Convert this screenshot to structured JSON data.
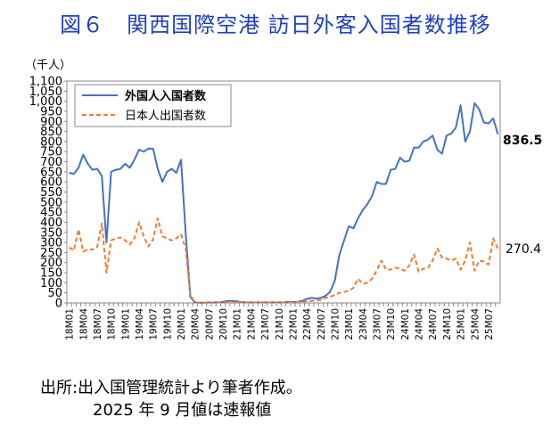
{
  "title": "図６　関西国際空港  訪日外客入国者数推移",
  "y_unit": "（千人）",
  "source_line1": "出所:出入国管理統計より筆者作成。",
  "source_line2": "2025 年 9 月値は速報値",
  "colors": {
    "foreign": "#4472c4",
    "japanese": "#ed7d31",
    "title": "#1f3fbf"
  },
  "chart_data": {
    "type": "line",
    "title": "図６　関西国際空港  訪日外客入国者数推移",
    "ylabel": "（千人）",
    "ylim": [
      0,
      1100
    ],
    "yticks": [
      "0",
      "50",
      "100",
      "150",
      "200",
      "250",
      "300",
      "350",
      "400",
      "450",
      "500",
      "550",
      "600",
      "650",
      "700",
      "750",
      "800",
      "850",
      "900",
      "950",
      "1,000",
      "1,050",
      "1,100"
    ],
    "grid": false,
    "legend_position": "top-left",
    "x": [
      "18M01",
      "18M02",
      "18M03",
      "18M04",
      "18M05",
      "18M06",
      "18M07",
      "18M08",
      "18M09",
      "18M10",
      "18M11",
      "18M12",
      "19M01",
      "19M02",
      "19M03",
      "19M04",
      "19M05",
      "19M06",
      "19M07",
      "19M08",
      "19M09",
      "19M10",
      "19M11",
      "19M12",
      "20M01",
      "20M02",
      "20M03",
      "20M04",
      "20M05",
      "20M06",
      "20M07",
      "20M08",
      "20M09",
      "20M10",
      "20M11",
      "20M12",
      "21M01",
      "21M02",
      "21M03",
      "21M04",
      "21M05",
      "21M06",
      "21M07",
      "21M08",
      "21M09",
      "21M10",
      "21M11",
      "21M12",
      "22M01",
      "22M02",
      "22M03",
      "22M04",
      "22M05",
      "22M06",
      "22M07",
      "22M08",
      "22M09",
      "22M10",
      "22M11",
      "22M12",
      "23M01",
      "23M02",
      "23M03",
      "23M04",
      "23M05",
      "23M06",
      "23M07",
      "23M08",
      "23M09",
      "23M10",
      "23M11",
      "23M12",
      "24M01",
      "24M02",
      "24M03",
      "24M04",
      "24M05",
      "24M06",
      "24M07",
      "24M08",
      "24M09",
      "24M10",
      "24M11",
      "24M12",
      "25M01",
      "25M02",
      "25M03",
      "25M04",
      "25M05",
      "25M06",
      "25M07",
      "25M08",
      "25M09"
    ],
    "x_tick_labels": [
      "18M01",
      "18M04",
      "18M07",
      "18M10",
      "19M01",
      "19M04",
      "19M07",
      "19M10",
      "20M01",
      "20M04",
      "20M07",
      "20M10",
      "21M01",
      "21M04",
      "21M07",
      "21M10",
      "22M01",
      "22M04",
      "22M07",
      "22M10",
      "23M01",
      "23M04",
      "23M07",
      "23M10",
      "24M01",
      "24M04",
      "24M07",
      "24M10",
      "25M01",
      "25M04",
      "25M07"
    ],
    "series": [
      {
        "name": "外国人入国者数",
        "values": [
          645,
          640,
          670,
          735,
          690,
          660,
          665,
          630,
          300,
          650,
          660,
          665,
          690,
          670,
          710,
          760,
          750,
          765,
          765,
          665,
          600,
          650,
          665,
          645,
          710,
          345,
          30,
          2,
          1,
          1,
          2,
          3,
          3,
          5,
          10,
          10,
          8,
          4,
          3,
          3,
          3,
          3,
          3,
          3,
          3,
          3,
          3,
          5,
          5,
          5,
          10,
          20,
          25,
          22,
          25,
          35,
          55,
          110,
          240,
          310,
          380,
          370,
          420,
          460,
          490,
          530,
          600,
          590,
          590,
          660,
          665,
          720,
          700,
          705,
          770,
          770,
          800,
          810,
          830,
          760,
          740,
          830,
          840,
          870,
          980,
          800,
          850,
          990,
          960,
          895,
          890,
          915,
          836.5
        ]
      },
      {
        "name": "日本人出国者数",
        "values": [
          275,
          260,
          365,
          255,
          265,
          265,
          275,
          395,
          150,
          310,
          320,
          325,
          310,
          290,
          320,
          400,
          330,
          280,
          315,
          420,
          330,
          320,
          310,
          320,
          340,
          270,
          40,
          2,
          1,
          1,
          1,
          1,
          2,
          2,
          3,
          3,
          3,
          2,
          2,
          2,
          2,
          2,
          2,
          2,
          2,
          2,
          2,
          3,
          3,
          5,
          5,
          8,
          10,
          12,
          15,
          25,
          30,
          40,
          50,
          55,
          60,
          75,
          120,
          95,
          100,
          120,
          160,
          210,
          165,
          165,
          175,
          170,
          160,
          185,
          240,
          155,
          170,
          175,
          210,
          270,
          225,
          220,
          210,
          220,
          165,
          210,
          300,
          160,
          210,
          205,
          190,
          320,
          270.4
        ]
      }
    ],
    "end_labels": [
      "836.5",
      "270.4"
    ]
  }
}
